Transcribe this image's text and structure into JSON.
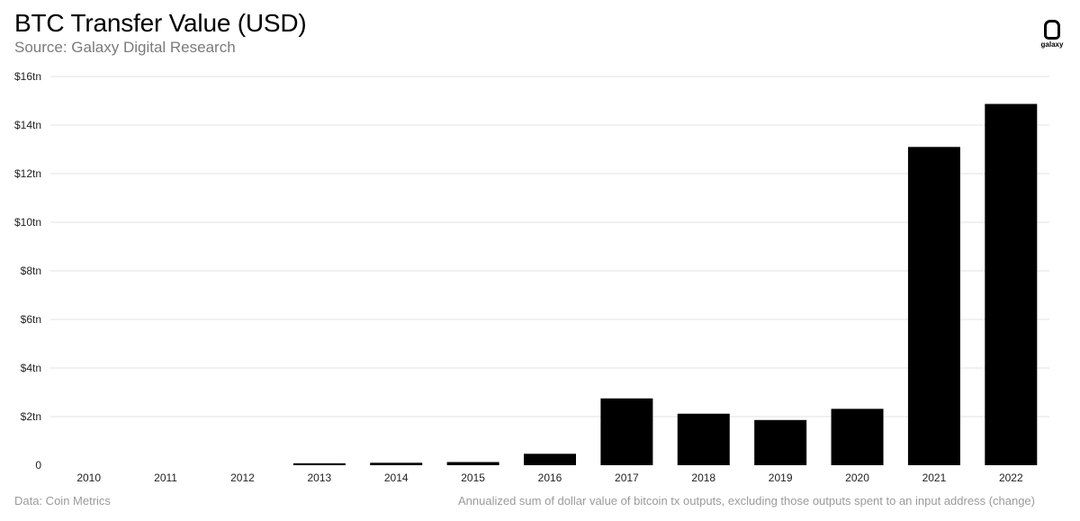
{
  "header": {
    "title": "BTC Transfer Value (USD)",
    "subtitle": "Source: Galaxy Digital Research"
  },
  "logo": {
    "icon": "galaxy-logo-icon",
    "wordmark": "galaxy"
  },
  "footer": {
    "left": "Data: Coin Metrics",
    "right": "Annualized sum of dollar value of bitcoin tx outputs, excluding those outputs spent to an input address (change)"
  },
  "colors": {
    "bar": "#000000",
    "grid": "#e3e3e3",
    "text": "#222222",
    "muted": "#9a9a9a"
  },
  "chart_data": {
    "type": "bar",
    "title": "BTC Transfer Value (USD)",
    "xlabel": "",
    "ylabel": "",
    "categories": [
      "2010",
      "2011",
      "2012",
      "2013",
      "2014",
      "2015",
      "2016",
      "2017",
      "2018",
      "2019",
      "2020",
      "2021",
      "2022"
    ],
    "values": [
      0.0,
      0.0,
      0.0,
      0.08,
      0.1,
      0.13,
      0.47,
      2.75,
      2.12,
      1.86,
      2.32,
      13.1,
      14.87
    ],
    "unit": "tn USD",
    "ylim": [
      0,
      16
    ],
    "yticks": [
      0,
      2,
      4,
      6,
      8,
      10,
      12,
      14,
      16
    ],
    "ytick_labels": [
      "0",
      "$2tn",
      "$4tn",
      "$6tn",
      "$8tn",
      "$10tn",
      "$12tn",
      "$14tn",
      "$16tn"
    ],
    "grid": true,
    "legend": "none"
  }
}
